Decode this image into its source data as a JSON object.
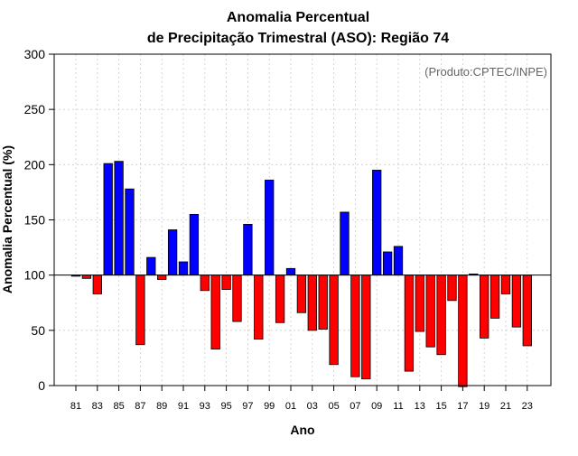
{
  "chart_data": {
    "type": "bar",
    "title_line1": "Anomalia Percentual",
    "title_line2": "de Precipitação Trimestral (ASO): Região 74",
    "annotation": "(Produto:CPTEC/INPE)",
    "xlabel": "Ano",
    "ylabel": "Anomalia Percentual (%)",
    "ylim": [
      0,
      300
    ],
    "baseline": 100,
    "yticks": [
      0,
      50,
      100,
      150,
      200,
      250,
      300
    ],
    "grid": true,
    "colors": {
      "above": "#0000ff",
      "below": "#ff0000",
      "edge": "#000000",
      "grid": "#cccccc"
    },
    "categories": [
      "81",
      "82",
      "83",
      "84",
      "85",
      "86",
      "87",
      "88",
      "89",
      "90",
      "91",
      "92",
      "93",
      "94",
      "95",
      "96",
      "97",
      "98",
      "99",
      "00",
      "01",
      "02",
      "03",
      "04",
      "05",
      "06",
      "07",
      "08",
      "09",
      "10",
      "11",
      "12",
      "13",
      "14",
      "15",
      "16",
      "17",
      "18",
      "19",
      "20",
      "21",
      "22",
      "23"
    ],
    "xtick_labels": [
      "81",
      "83",
      "85",
      "87",
      "89",
      "91",
      "93",
      "95",
      "97",
      "99",
      "01",
      "03",
      "05",
      "07",
      "09",
      "11",
      "13",
      "15",
      "17",
      "19",
      "21",
      "23"
    ],
    "values": [
      99,
      97,
      83,
      201,
      203,
      178,
      37,
      116,
      96,
      141,
      112,
      155,
      86,
      33,
      87,
      58,
      146,
      42,
      186,
      57,
      106,
      66,
      50,
      51,
      19,
      157,
      8,
      6,
      195,
      121,
      126,
      13,
      49,
      35,
      28,
      77,
      -1,
      101,
      43,
      61,
      83,
      53,
      36
    ]
  }
}
